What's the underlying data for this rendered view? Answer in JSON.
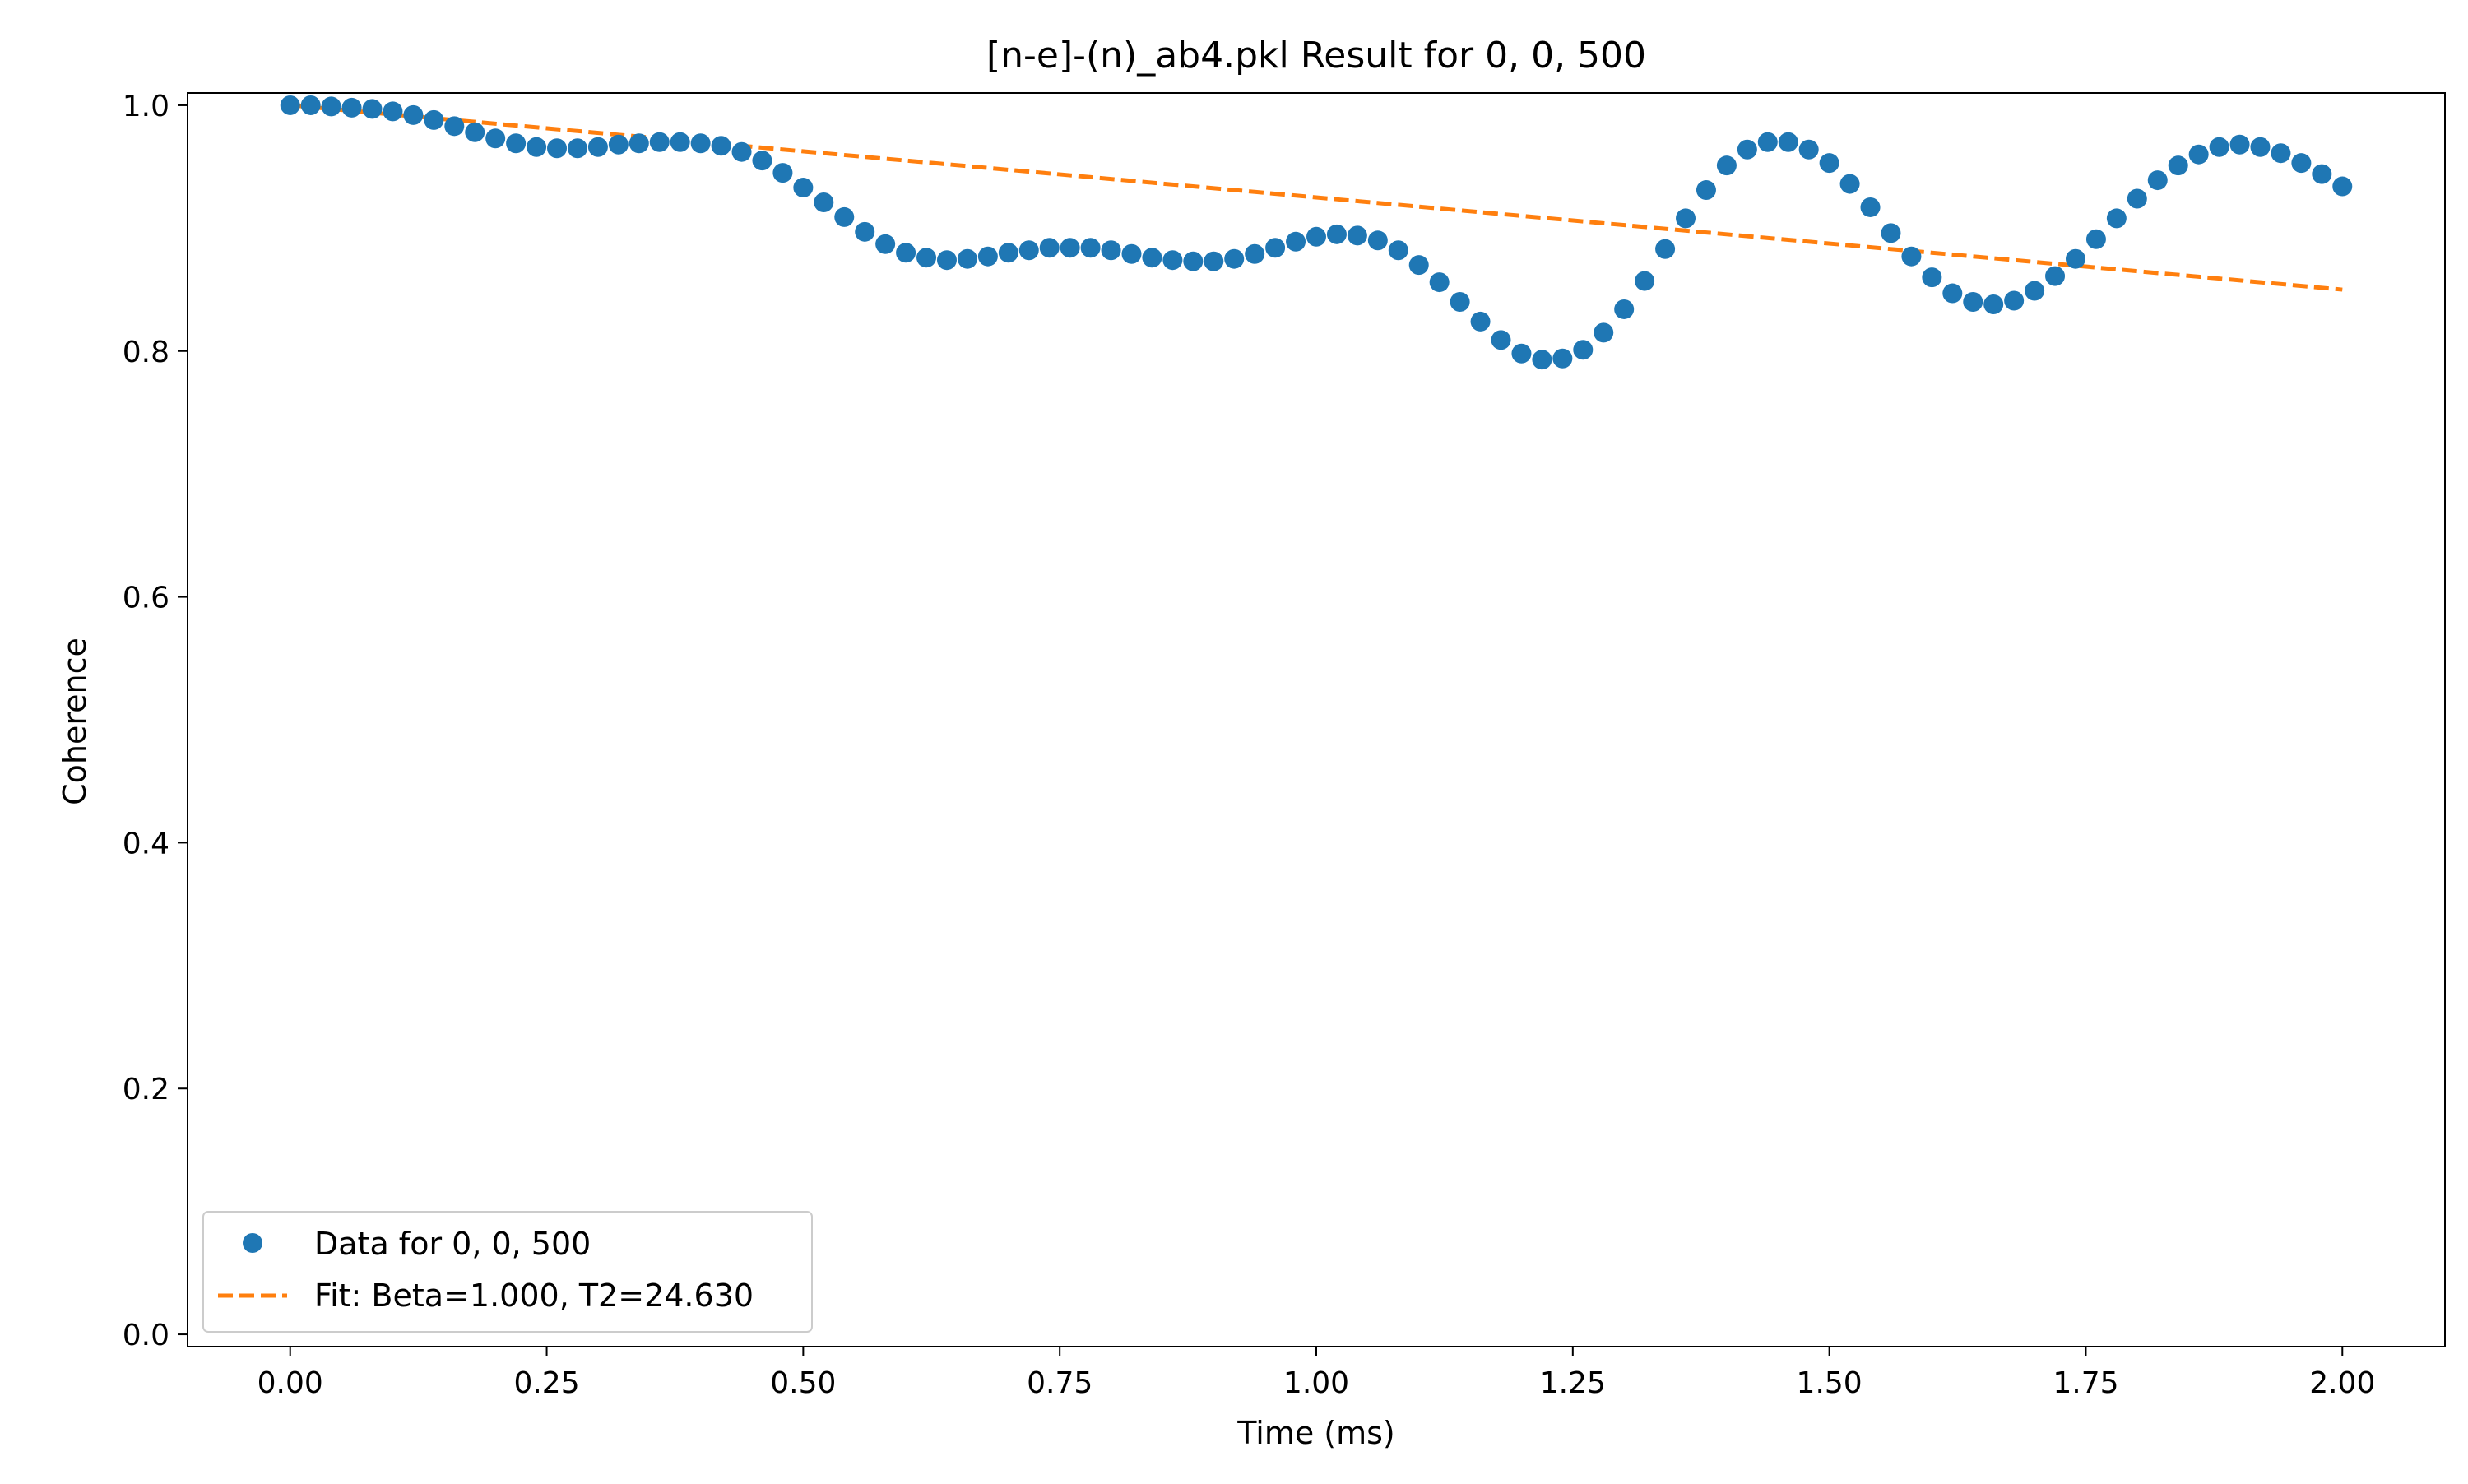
{
  "chart_data": {
    "type": "scatter",
    "title": "[n-e]-(n)_ab4.pkl Result for 0, 0, 500",
    "xlabel": "Time (ms)",
    "ylabel": "Coherence",
    "xlim": [
      -0.1,
      2.1
    ],
    "ylim": [
      -0.01,
      1.01
    ],
    "x_ticks": [
      0.0,
      0.25,
      0.5,
      0.75,
      1.0,
      1.25,
      1.5,
      1.75,
      2.0
    ],
    "x_tick_labels": [
      "0.00",
      "0.25",
      "0.50",
      "0.75",
      "1.00",
      "1.25",
      "1.50",
      "1.75",
      "2.00"
    ],
    "y_ticks": [
      0.0,
      0.2,
      0.4,
      0.6,
      0.8,
      1.0
    ],
    "y_tick_labels": [
      "0.0",
      "0.2",
      "0.4",
      "0.6",
      "0.8",
      "1.0"
    ],
    "grid": false,
    "legend_position": "lower-left",
    "series": [
      {
        "name": "Data for 0, 0, 500",
        "kind": "scatter",
        "color": "#1f77b4",
        "x": [
          0.0,
          0.02,
          0.04,
          0.06,
          0.08,
          0.1,
          0.12,
          0.14,
          0.16,
          0.18,
          0.2,
          0.22,
          0.24,
          0.26,
          0.28,
          0.3,
          0.32,
          0.34,
          0.36,
          0.38,
          0.4,
          0.42,
          0.44,
          0.46,
          0.48,
          0.5,
          0.52,
          0.54,
          0.56,
          0.58,
          0.6,
          0.62,
          0.64,
          0.66,
          0.68,
          0.7,
          0.72,
          0.74,
          0.76,
          0.78,
          0.8,
          0.82,
          0.84,
          0.86,
          0.88,
          0.9,
          0.92,
          0.94,
          0.96,
          0.98,
          1.0,
          1.02,
          1.04,
          1.06,
          1.08,
          1.1,
          1.12,
          1.14,
          1.16,
          1.18,
          1.2,
          1.22,
          1.24,
          1.26,
          1.28,
          1.3,
          1.32,
          1.34,
          1.36,
          1.38,
          1.4,
          1.42,
          1.44,
          1.46,
          1.48,
          1.5,
          1.52,
          1.54,
          1.56,
          1.58,
          1.6,
          1.62,
          1.64,
          1.66,
          1.68,
          1.7,
          1.72,
          1.74,
          1.76,
          1.78,
          1.8,
          1.82,
          1.84,
          1.86,
          1.88,
          1.9,
          1.92,
          1.94,
          1.96,
          1.98,
          2.0
        ],
        "y": [
          1.0,
          1.0,
          0.999,
          0.998,
          0.997,
          0.995,
          0.992,
          0.988,
          0.983,
          0.978,
          0.973,
          0.969,
          0.966,
          0.965,
          0.965,
          0.966,
          0.968,
          0.969,
          0.97,
          0.97,
          0.969,
          0.967,
          0.962,
          0.955,
          0.945,
          0.933,
          0.921,
          0.909,
          0.897,
          0.887,
          0.88,
          0.876,
          0.874,
          0.875,
          0.877,
          0.88,
          0.882,
          0.884,
          0.884,
          0.884,
          0.882,
          0.879,
          0.876,
          0.874,
          0.873,
          0.873,
          0.875,
          0.879,
          0.884,
          0.889,
          0.893,
          0.895,
          0.894,
          0.89,
          0.882,
          0.87,
          0.856,
          0.84,
          0.824,
          0.809,
          0.798,
          0.793,
          0.794,
          0.801,
          0.815,
          0.834,
          0.857,
          0.883,
          0.908,
          0.931,
          0.951,
          0.964,
          0.97,
          0.97,
          0.964,
          0.953,
          0.936,
          0.917,
          0.896,
          0.877,
          0.86,
          0.847,
          0.84,
          0.838,
          0.841,
          0.849,
          0.861,
          0.875,
          0.891,
          0.908,
          0.924,
          0.939,
          0.951,
          0.96,
          0.966,
          0.968,
          0.966,
          0.961,
          0.953,
          0.944,
          0.934
        ]
      },
      {
        "name": "Fit: Beta=1.000, T2=24.630",
        "kind": "line",
        "style": "dashed",
        "color": "#ff7f0e",
        "x": [
          0.0,
          2.0
        ],
        "y": [
          1.0,
          0.85
        ]
      }
    ]
  }
}
